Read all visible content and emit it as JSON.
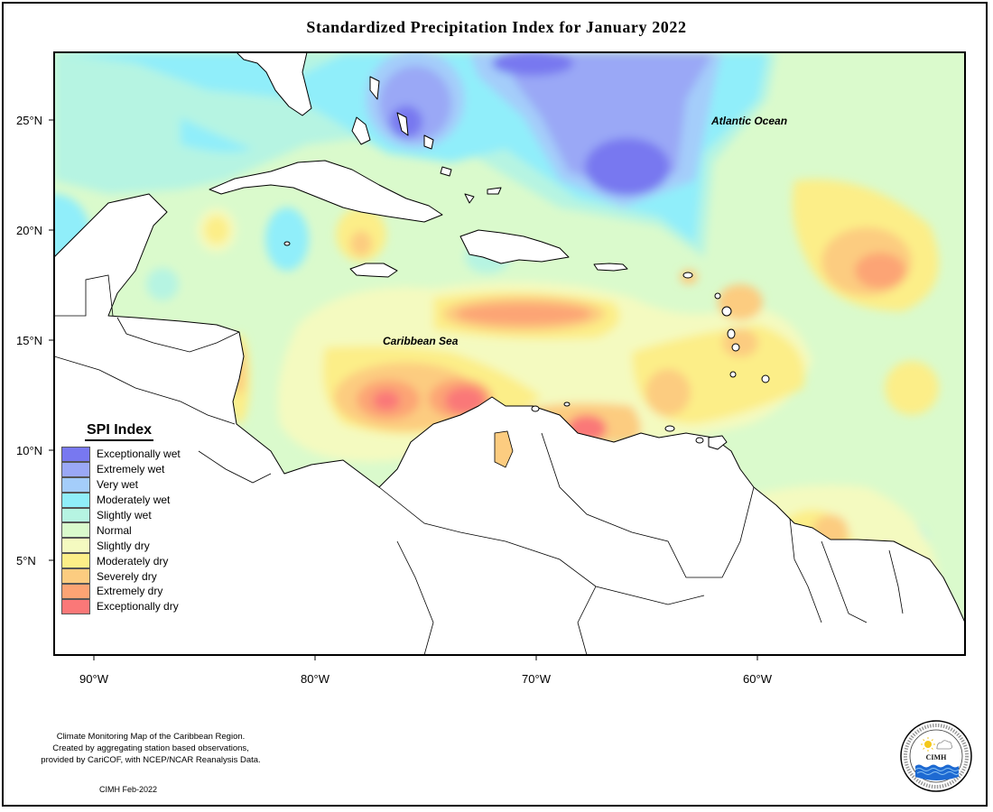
{
  "title": "Standardized Precipitation Index for January 2022",
  "lat_labels": [
    "25°N",
    "20°N",
    "15°N",
    "10°N",
    "5°N"
  ],
  "lon_labels": [
    "90°W",
    "80°W",
    "70°W",
    "60°W"
  ],
  "map_labels": {
    "atlantic": "Atlantic Ocean",
    "caribbean": "Caribbean Sea"
  },
  "legend": {
    "title": "SPI Index",
    "items": [
      {
        "label": "Exceptionally wet",
        "color": "#7878f0"
      },
      {
        "label": "Extremely wet",
        "color": "#9aa8f6"
      },
      {
        "label": "Very wet",
        "color": "#a4cdfa"
      },
      {
        "label": "Moderately wet",
        "color": "#90eefa"
      },
      {
        "label": "Slightly wet",
        "color": "#b6f4e2"
      },
      {
        "label": "Normal",
        "color": "#dafacc"
      },
      {
        "label": "Slightly dry",
        "color": "#f4fac0"
      },
      {
        "label": "Moderately dry",
        "color": "#fcee88"
      },
      {
        "label": "Severely dry",
        "color": "#fccc80"
      },
      {
        "label": "Extremely dry",
        "color": "#fca474"
      },
      {
        "label": "Exceptionally dry",
        "color": "#fa7878"
      }
    ]
  },
  "credits": {
    "line1": "Climate Monitoring Map of the Caribbean Region.",
    "line2": "Created by aggregating station based observations,",
    "line3": "provided by CariCOF, with NCEP/NCAR Reanalysis Data.",
    "date": "CIMH Feb-2022"
  },
  "logo": {
    "name": "CIMH",
    "ring_text": "Caribbean Institute for Meteorology and Hydrology"
  }
}
